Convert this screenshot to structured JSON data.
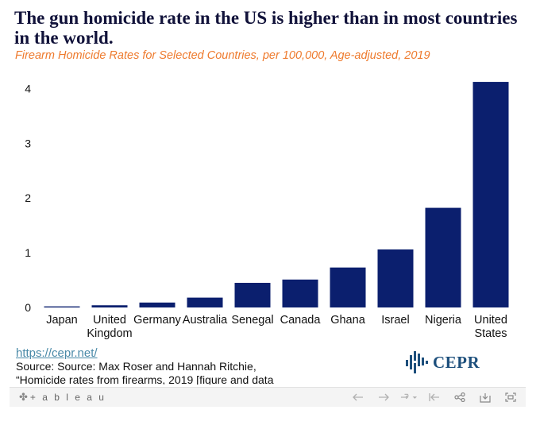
{
  "header": {
    "title": "The gun homicide rate in the US is higher than in most countries in the world.",
    "subtitle": "Firearm Homicide Rates for Selected Countries, per 100,000, Age-adjusted, 2019"
  },
  "chart_data": {
    "type": "bar",
    "title": "The gun homicide rate in the US is higher than in most countries in the world.",
    "subtitle": "Firearm Homicide Rates for Selected Countries, per 100,000, Age-adjusted, 2019",
    "xlabel": "",
    "ylabel": "",
    "categories": [
      "Japan",
      "United Kingdom",
      "Germany",
      "Australia",
      "Senegal",
      "Canada",
      "Ghana",
      "Israel",
      "Nigeria",
      "United States"
    ],
    "category_lines": [
      [
        "Japan"
      ],
      [
        "United",
        "Kingdom"
      ],
      [
        "Germany"
      ],
      [
        "Australia"
      ],
      [
        "Senegal"
      ],
      [
        "Canada"
      ],
      [
        "Ghana"
      ],
      [
        "Israel"
      ],
      [
        "Nigeria"
      ],
      [
        "United",
        "States"
      ]
    ],
    "values": [
      0.02,
      0.04,
      0.09,
      0.18,
      0.45,
      0.51,
      0.73,
      1.06,
      1.82,
      4.12
    ],
    "yticks": [
      0,
      1,
      2,
      3,
      4
    ],
    "ylim": [
      0,
      4.15
    ],
    "grid": false,
    "bar_color": "#0b1f6e"
  },
  "footer": {
    "link": "https://cepr.net/",
    "source_lines": [
      "Source: Source: Max Roser and Hannah Ritchie,",
      "“Homicide rates from firearms, 2019 [figure and data"
    ],
    "logo_text": "CEPR"
  },
  "toolbar": {
    "brand": "+ a b l e a u",
    "brand_mark": "✤",
    "icons": [
      "undo-icon",
      "redo-icon",
      "revert-icon",
      "reset-icon",
      "share-icon",
      "download-icon",
      "fullscreen-icon"
    ]
  }
}
